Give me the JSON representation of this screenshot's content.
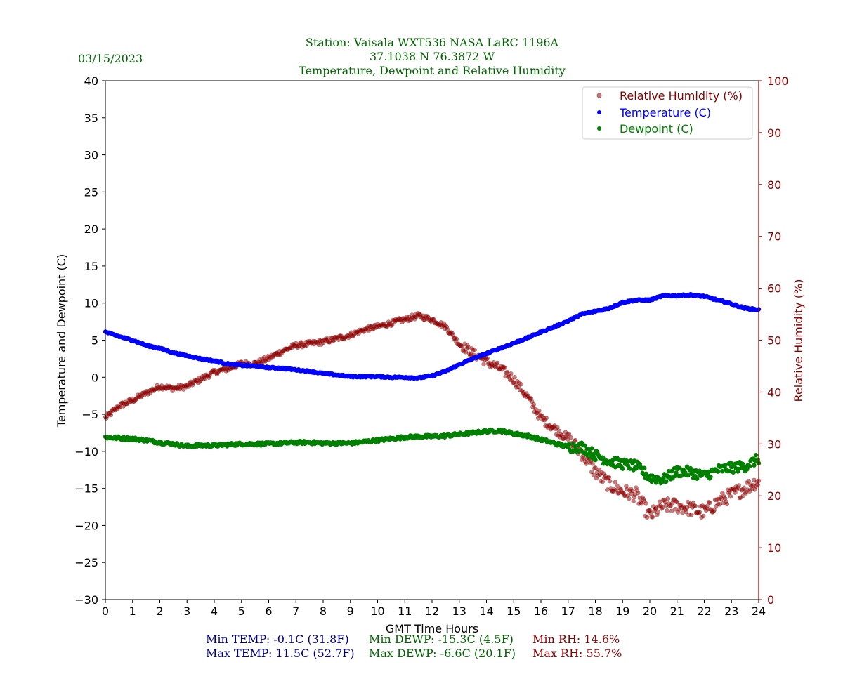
{
  "header": {
    "date": "03/15/2023",
    "title_line1": "Station:  Vaisala WXT536  NASA LaRC 1196A",
    "title_line2": "37.1038 N 76.3872 W",
    "title_line3": "Temperature, Dewpoint and Relative Humidity"
  },
  "stats": {
    "min_temp": "Min TEMP: -0.1C (31.8F)",
    "max_temp": "Max TEMP: 11.5C (52.7F)",
    "min_dewp": "Min DEWP: -15.3C (4.5F)",
    "max_dewp": "Max DEWP: -6.6C (20.1F)",
    "min_rh": "Min RH: 14.6%",
    "max_rh": "Max RH: 55.7%"
  },
  "colors": {
    "title": "#006400",
    "temp_stats": "#00008b",
    "dewp_stats": "#006400",
    "rh_stats": "#8b0000",
    "temperature": "#0000ff",
    "dewpoint": "#008000",
    "rh": "#8b0000"
  },
  "chart_data": {
    "type": "scatter",
    "title": "Temperature, Dewpoint and Relative Humidity",
    "xlabel": "GMT Time Hours",
    "ylabel": "Temperature and Dewpoint (C)",
    "y2label": "Relative Humidity (%)",
    "xlim": [
      0,
      24
    ],
    "ylim": [
      -30,
      40
    ],
    "y2lim": [
      0,
      100
    ],
    "xticks": [
      "0",
      "1",
      "2",
      "3",
      "4",
      "5",
      "6",
      "7",
      "8",
      "9",
      "10",
      "11",
      "12",
      "13",
      "14",
      "15",
      "16",
      "17",
      "18",
      "19",
      "20",
      "21",
      "22",
      "23",
      "24"
    ],
    "yticks": [
      "40",
      "35",
      "30",
      "25",
      "20",
      "15",
      "10",
      "5",
      "0",
      "−5",
      "−10",
      "−15",
      "−20",
      "−25",
      "−30"
    ],
    "y2ticks": [
      "100",
      "90",
      "80",
      "70",
      "60",
      "50",
      "40",
      "30",
      "20",
      "10",
      "0"
    ],
    "legend_position": "top-right",
    "x": [
      0,
      0.5,
      1,
      1.5,
      2,
      2.5,
      3,
      3.5,
      4,
      4.5,
      5,
      5.5,
      6,
      6.5,
      7,
      7.5,
      8,
      8.5,
      9,
      9.5,
      10,
      10.5,
      11,
      11.5,
      12,
      12.5,
      13,
      13.5,
      14,
      14.5,
      15,
      15.5,
      16,
      16.5,
      17,
      17.5,
      18,
      18.5,
      19,
      19.5,
      20,
      20.5,
      21,
      21.5,
      22,
      22.5,
      23,
      23.5,
      24
    ],
    "series": [
      {
        "name": "Relative Humidity (%)",
        "axis": "right",
        "color": "#8b0000",
        "values": [
          35,
          37.3,
          38.4,
          39.8,
          41.1,
          40.7,
          41.1,
          42.5,
          43.8,
          44.5,
          45.5,
          45.5,
          46.5,
          47.9,
          49,
          49.3,
          49.7,
          50.3,
          51,
          52,
          52.6,
          53.3,
          54,
          54.7,
          54,
          52.6,
          49.3,
          47.5,
          45.9,
          44.5,
          42.5,
          39.1,
          35,
          33,
          31,
          28.3,
          24.6,
          22.2,
          20.8,
          20.2,
          16.1,
          18.1,
          18.1,
          17.5,
          16.8,
          18.8,
          20.2,
          21.5,
          22.9
        ]
      },
      {
        "name": "Temperature (C)",
        "axis": "left",
        "color": "#0000ff",
        "values": [
          6.1,
          5.5,
          5.0,
          4.3,
          3.9,
          3.3,
          2.9,
          2.5,
          2.2,
          1.8,
          1.6,
          1.5,
          1.3,
          1.2,
          1.0,
          0.8,
          0.5,
          0.3,
          0.1,
          0.1,
          0.1,
          0.0,
          0.0,
          -0.1,
          0.2,
          0.8,
          1.7,
          2.5,
          3.2,
          3.9,
          4.6,
          5.3,
          6.1,
          6.8,
          7.6,
          8.5,
          8.9,
          9.3,
          10.1,
          10.4,
          10.4,
          11.0,
          11.0,
          11.1,
          10.9,
          10.4,
          9.9,
          9.3,
          9.1
        ]
      },
      {
        "name": "Dewpoint (C)",
        "axis": "left",
        "color": "#008000",
        "values": [
          -8.1,
          -8.2,
          -8.3,
          -8.5,
          -8.8,
          -9.0,
          -9.3,
          -9.2,
          -9.2,
          -9.1,
          -9.0,
          -9.0,
          -9.0,
          -8.9,
          -8.8,
          -8.8,
          -8.9,
          -8.9,
          -8.9,
          -8.7,
          -8.5,
          -8.3,
          -8.1,
          -8.0,
          -8.0,
          -7.9,
          -7.7,
          -7.5,
          -7.3,
          -7.2,
          -7.6,
          -7.9,
          -8.4,
          -8.9,
          -9.4,
          -9.4,
          -10.5,
          -11.3,
          -11.7,
          -12.0,
          -13.5,
          -13.8,
          -12.7,
          -12.8,
          -13.3,
          -12.5,
          -12.2,
          -12.0,
          -11.0
        ]
      }
    ]
  }
}
